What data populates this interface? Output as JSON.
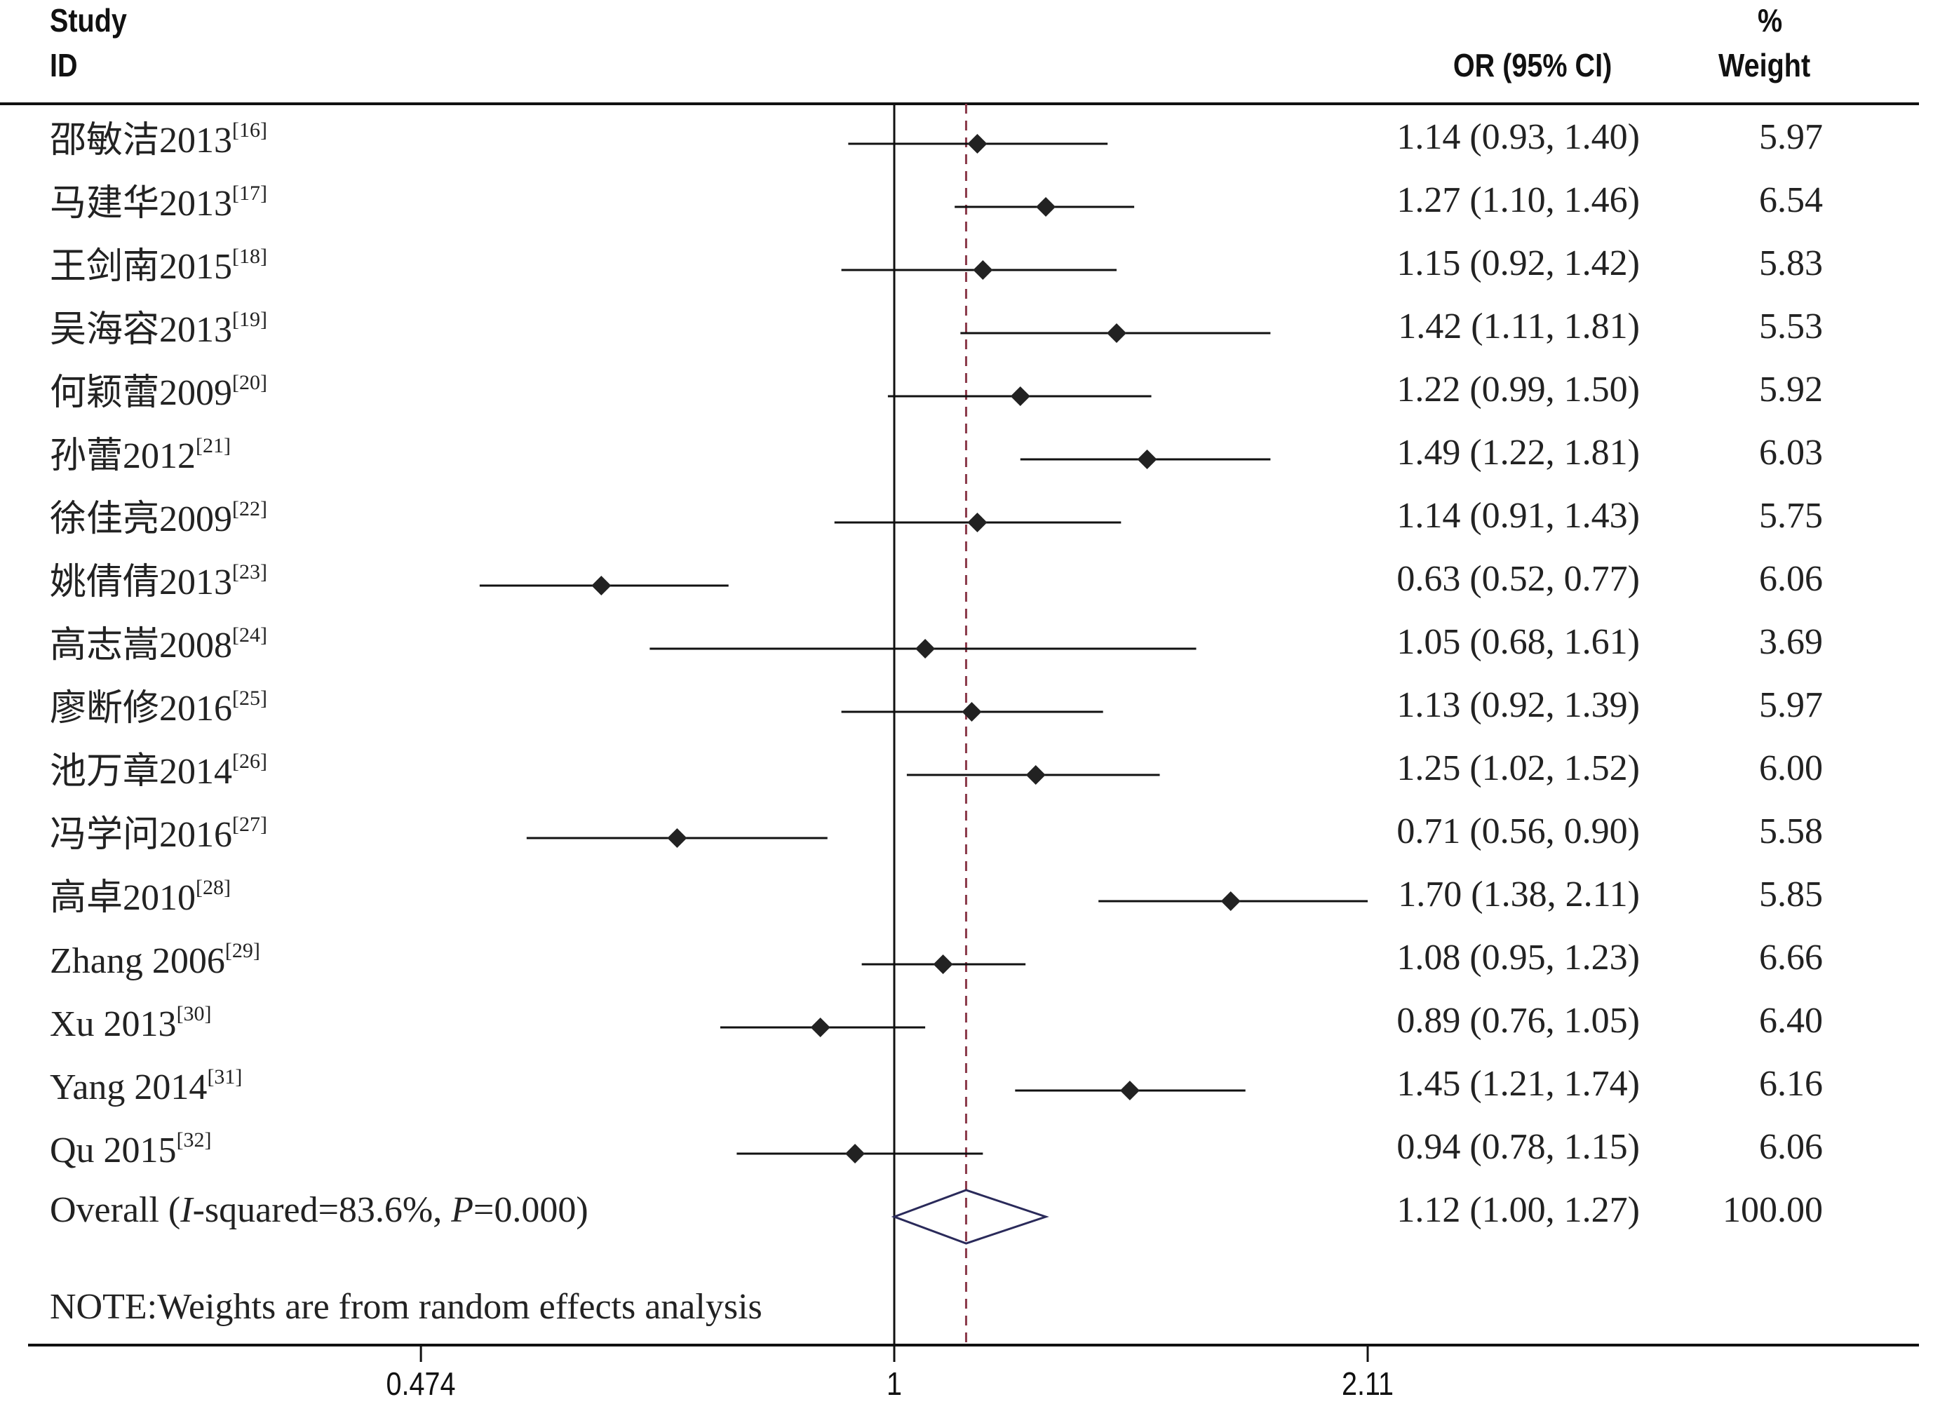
{
  "chart_data": {
    "type": "forest",
    "headers": {
      "study_line1": "Study",
      "study_line2": "ID",
      "or": "OR (95% CI)",
      "weight_line1": "%",
      "weight_line2": "Weight"
    },
    "x_scale": "log",
    "x_ticks": [
      "0.474",
      "1",
      "2.11"
    ],
    "x_tick_values": [
      0.474,
      1,
      2.11
    ],
    "null_line": 1,
    "overall_line": 1.12,
    "studies": [
      {
        "name": "邵敏洁2013",
        "ref": "[16]",
        "or": 1.14,
        "lo": 0.93,
        "hi": 1.4,
        "ci_text": "1.14 (0.93, 1.40)",
        "weight": "5.97"
      },
      {
        "name": "马建华2013",
        "ref": "[17]",
        "or": 1.27,
        "lo": 1.1,
        "hi": 1.46,
        "ci_text": "1.27 (1.10, 1.46)",
        "weight": "6.54"
      },
      {
        "name": "王剑南2015",
        "ref": "[18]",
        "or": 1.15,
        "lo": 0.92,
        "hi": 1.42,
        "ci_text": "1.15 (0.92, 1.42)",
        "weight": "5.83"
      },
      {
        "name": "吴海容2013",
        "ref": "[19]",
        "or": 1.42,
        "lo": 1.11,
        "hi": 1.81,
        "ci_text": "1.42 (1.11, 1.81)",
        "weight": "5.53"
      },
      {
        "name": "何颖蕾2009",
        "ref": "[20]",
        "or": 1.22,
        "lo": 0.99,
        "hi": 1.5,
        "ci_text": "1.22 (0.99, 1.50)",
        "weight": "5.92"
      },
      {
        "name": "孙蕾2012",
        "ref": "[21]",
        "or": 1.49,
        "lo": 1.22,
        "hi": 1.81,
        "ci_text": "1.49 (1.22, 1.81)",
        "weight": "6.03"
      },
      {
        "name": "徐佳亮2009",
        "ref": "[22]",
        "or": 1.14,
        "lo": 0.91,
        "hi": 1.43,
        "ci_text": "1.14 (0.91, 1.43)",
        "weight": "5.75"
      },
      {
        "name": "姚倩倩2013",
        "ref": "[23]",
        "or": 0.63,
        "lo": 0.52,
        "hi": 0.77,
        "ci_text": "0.63 (0.52, 0.77)",
        "weight": "6.06"
      },
      {
        "name": "高志嵩2008",
        "ref": "[24]",
        "or": 1.05,
        "lo": 0.68,
        "hi": 1.61,
        "ci_text": "1.05 (0.68, 1.61)",
        "weight": "3.69"
      },
      {
        "name": "廖断修2016",
        "ref": "[25]",
        "or": 1.13,
        "lo": 0.92,
        "hi": 1.39,
        "ci_text": "1.13 (0.92, 1.39)",
        "weight": "5.97"
      },
      {
        "name": "池万章2014",
        "ref": "[26]",
        "or": 1.25,
        "lo": 1.02,
        "hi": 1.52,
        "ci_text": "1.25 (1.02, 1.52)",
        "weight": "6.00"
      },
      {
        "name": "冯学问2016",
        "ref": "[27]",
        "or": 0.71,
        "lo": 0.56,
        "hi": 0.9,
        "ci_text": "0.71 (0.56, 0.90)",
        "weight": "5.58"
      },
      {
        "name": "高卓2010",
        "ref": "[28]",
        "or": 1.7,
        "lo": 1.38,
        "hi": 2.11,
        "ci_text": "1.70 (1.38, 2.11)",
        "weight": "5.85"
      },
      {
        "name": "Zhang 2006",
        "ref": "[29]",
        "or": 1.08,
        "lo": 0.95,
        "hi": 1.23,
        "ci_text": "1.08 (0.95, 1.23)",
        "weight": "6.66"
      },
      {
        "name": "Xu 2013",
        "ref": "[30]",
        "or": 0.89,
        "lo": 0.76,
        "hi": 1.05,
        "ci_text": "0.89 (0.76, 1.05)",
        "weight": "6.40"
      },
      {
        "name": "Yang 2014",
        "ref": "[31]",
        "or": 1.45,
        "lo": 1.21,
        "hi": 1.74,
        "ci_text": "1.45 (1.21, 1.74)",
        "weight": "6.16"
      },
      {
        "name": "Qu 2015",
        "ref": "[32]",
        "or": 0.94,
        "lo": 0.78,
        "hi": 1.15,
        "ci_text": "0.94 (0.78, 1.15)",
        "weight": "6.06"
      }
    ],
    "overall": {
      "label_prefix": "Overall (",
      "label_i": "I",
      "label_mid": "-squared=83.6%, ",
      "label_p": "P",
      "label_suffix": "=0.000)",
      "or": 1.12,
      "lo": 1.0,
      "hi": 1.27,
      "ci_text": "1.12 (1.00, 1.27)",
      "weight": "100.00"
    },
    "note": "NOTE:Weights are from random effects analysis",
    "colors": {
      "marker": "#222222",
      "line": "#111111",
      "overall_diamond": "#2a2a5a",
      "dashed_line": "#8b3a4a"
    }
  }
}
